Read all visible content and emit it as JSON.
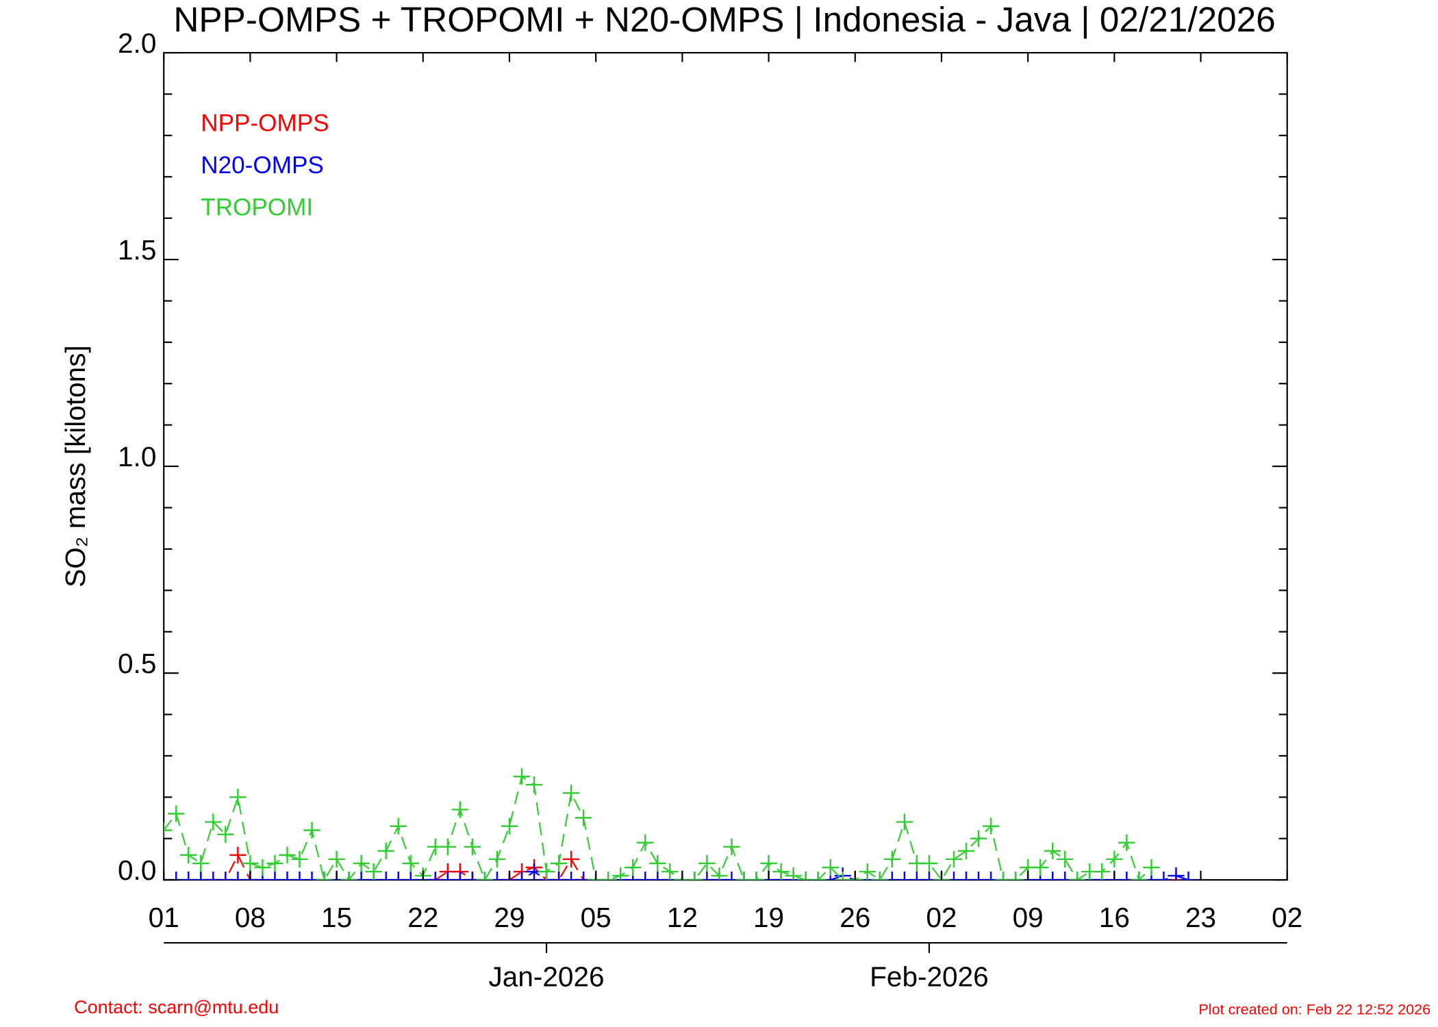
{
  "chart_data": {
    "type": "line",
    "title": "NPP-OMPS + TROPOMI + N20-OMPS | Indonesia - Java | 02/21/2026",
    "y_label": "SO₂ mass [kilotons]",
    "x": [
      0,
      1,
      2,
      3,
      4,
      5,
      6,
      7,
      8,
      9,
      10,
      11,
      12,
      13,
      14,
      15,
      16,
      17,
      18,
      19,
      20,
      21,
      22,
      23,
      24,
      25,
      26,
      27,
      28,
      29,
      30,
      31,
      32,
      33,
      34,
      35,
      36,
      37,
      38,
      39,
      40,
      41,
      42,
      43,
      44,
      45,
      46,
      47,
      48,
      49,
      50,
      51,
      52,
      53,
      54,
      55,
      56,
      57,
      58,
      59,
      60,
      61,
      62,
      63,
      64,
      65,
      66,
      67,
      68,
      69,
      70,
      71,
      72,
      73,
      74,
      75,
      76,
      77,
      78,
      79,
      80,
      81,
      82,
      83
    ],
    "series": [
      {
        "name": "NPP-OMPS",
        "color": "#ff0000",
        "values": [
          null,
          null,
          null,
          null,
          0,
          0,
          0.06,
          0,
          null,
          null,
          null,
          null,
          null,
          null,
          null,
          null,
          null,
          null,
          null,
          null,
          null,
          null,
          0,
          0.02,
          0.02,
          0,
          null,
          null,
          0,
          0.02,
          0.03,
          0,
          0,
          0.05,
          0,
          null,
          null,
          null,
          null,
          null,
          null,
          null,
          null,
          null,
          null,
          null,
          null,
          null,
          null,
          null,
          null,
          null,
          null,
          null,
          null,
          0,
          null,
          null,
          null,
          null,
          null,
          null,
          null,
          null,
          null,
          null,
          null,
          null,
          null,
          null,
          null,
          null,
          null,
          null,
          null,
          null,
          null,
          null,
          null,
          null,
          null,
          null,
          0,
          null
        ]
      },
      {
        "name": "N20-OMPS",
        "color": "#0000ff",
        "values": [
          0,
          0,
          0,
          0,
          0,
          0,
          0,
          0,
          0,
          0,
          0,
          0,
          0,
          0,
          0,
          0,
          0,
          0,
          0,
          0,
          0,
          0,
          0,
          0,
          0,
          0,
          0,
          0,
          0,
          0,
          0.02,
          0,
          0,
          0,
          0,
          0,
          0,
          0,
          0,
          0,
          0,
          0,
          0,
          0,
          0,
          0,
          0,
          0,
          0,
          0,
          0,
          0,
          0,
          0,
          0,
          0.01,
          0,
          0,
          0,
          0,
          0,
          0,
          0,
          0,
          0,
          0,
          0,
          0,
          0,
          0,
          0,
          0,
          0,
          0,
          0,
          0,
          0,
          0,
          0,
          0,
          0,
          0,
          0.01,
          0
        ]
      },
      {
        "name": "TROPOMI",
        "color": "#32cd32",
        "values": [
          0.12,
          0.16,
          0.06,
          0.04,
          0.14,
          0.11,
          0.2,
          0.04,
          0.03,
          0.04,
          0.06,
          0.05,
          0.12,
          0,
          0.05,
          0,
          0.04,
          0.02,
          0.07,
          0.13,
          0.04,
          0.01,
          0.08,
          0.08,
          0.17,
          0.08,
          0,
          0.05,
          0.13,
          0.25,
          0.23,
          0.02,
          0.04,
          0.21,
          0.15,
          0,
          0,
          0.01,
          0.03,
          0.09,
          0.04,
          0.02,
          0,
          0,
          0.04,
          0.01,
          0.08,
          0,
          0,
          0.04,
          0.02,
          0.01,
          0,
          0,
          0.03,
          0,
          0,
          0.02,
          0,
          0.05,
          0.14,
          0.04,
          0.04,
          0,
          0.05,
          0.07,
          0.1,
          0.13,
          0,
          0,
          0.03,
          0.03,
          0.07,
          0.05,
          0,
          0.02,
          0.02,
          0.05,
          0.09,
          0,
          0.03,
          null,
          null,
          null
        ]
      }
    ],
    "xlim": [
      0,
      91
    ],
    "xticks": [
      {
        "value": 0,
        "label": "01"
      },
      {
        "value": 7,
        "label": "08"
      },
      {
        "value": 14,
        "label": "15"
      },
      {
        "value": 21,
        "label": "22"
      },
      {
        "value": 28,
        "label": "29"
      },
      {
        "value": 35,
        "label": "05"
      },
      {
        "value": 42,
        "label": "12"
      },
      {
        "value": 49,
        "label": "19"
      },
      {
        "value": 56,
        "label": "26"
      },
      {
        "value": 63,
        "label": "02"
      },
      {
        "value": 70,
        "label": "09"
      },
      {
        "value": 77,
        "label": "16"
      },
      {
        "value": 84,
        "label": "23"
      },
      {
        "value": 91,
        "label": "02"
      }
    ],
    "month_ticks": [
      {
        "value": 31,
        "label": "Jan-2026"
      },
      {
        "value": 62,
        "label": "Feb-2026"
      }
    ],
    "ylim": [
      0,
      2.0
    ],
    "yticks": [
      {
        "value": 0,
        "label": "0.0"
      },
      0.5,
      {
        "value": 1,
        "label": "1.0"
      },
      1.5,
      {
        "value": 2,
        "label": "2.0"
      }
    ],
    "contact": "Contact: scarn@mtu.edu",
    "created": "Plot created on: Feb 22 12:52 2026"
  }
}
